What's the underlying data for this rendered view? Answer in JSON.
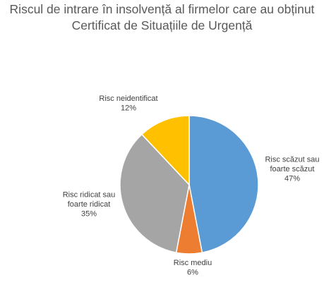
{
  "chart_data": {
    "type": "pie",
    "title": "Riscul de intrare în insolvență al firmelor care au obținut Certificat de Situațiile de Urgență",
    "title_lines": [
      "Riscul de intrare în insolvență al firmelor care au obținut",
      "Certificat de Situațiile de Urgență"
    ],
    "slices": [
      {
        "label": "Risc scăzut sau foarte scăzut",
        "label_lines": [
          "Risc scăzut sau",
          "foarte scăzut"
        ],
        "value": 47,
        "value_label": "47%",
        "color": "#5b9bd5"
      },
      {
        "label": "Risc mediu",
        "label_lines": [
          "Risc mediu"
        ],
        "value": 6,
        "value_label": "6%",
        "color": "#ed7d31"
      },
      {
        "label": "Risc ridicat sau foarte ridicat",
        "label_lines": [
          "Risc ridicat sau",
          "foarte ridicat"
        ],
        "value": 35,
        "value_label": "35%",
        "color": "#a5a5a5"
      },
      {
        "label": "Risc neidentificat",
        "label_lines": [
          "Risc neidentificat"
        ],
        "value": 12,
        "value_label": "12%",
        "color": "#ffc000"
      }
    ],
    "start_angle": "top (12 o'clock)",
    "direction": "clockwise",
    "legend": "none",
    "slice_border_color": "#ffffff"
  }
}
